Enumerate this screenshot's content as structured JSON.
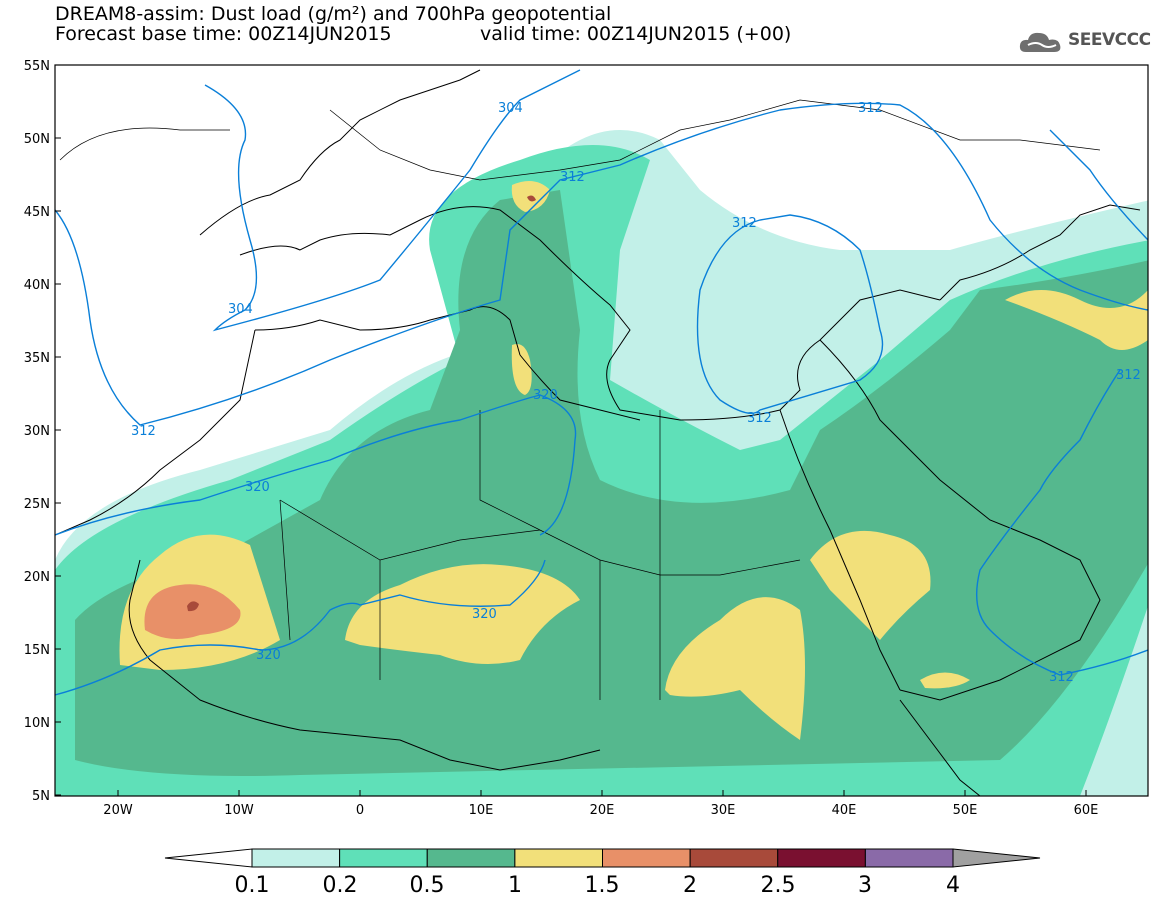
{
  "title": "DREAM8-assim: Dust load (g/m²) and 700hPa geopotential",
  "forecast_base": "Forecast base time: 00Z14JUN2015",
  "valid_time": "valid time: 00Z14JUN2015 (+00)",
  "logo_text": "SEEVCCC",
  "lat_labels": [
    "55N",
    "50N",
    "45N",
    "40N",
    "35N",
    "30N",
    "25N",
    "20N",
    "15N",
    "10N",
    "5N"
  ],
  "lon_labels": [
    "20W",
    "10W",
    "0",
    "10E",
    "20E",
    "30E",
    "40E",
    "50E",
    "60E"
  ],
  "contour_labels": [
    "304",
    "304",
    "312",
    "312",
    "312",
    "312",
    "312",
    "312",
    "312",
    "320",
    "320",
    "320",
    "320"
  ],
  "colorbar": {
    "ticks": [
      "0.1",
      "0.2",
      "0.5",
      "1",
      "1.5",
      "2",
      "2.5",
      "3",
      "4"
    ],
    "colors": [
      "#c2f0e8",
      "#5fe0b8",
      "#55b88e",
      "#f2e07a",
      "#e89068",
      "#a84a3a",
      "#7a1030",
      "#8a6aa8"
    ],
    "over_color": "#a0a0a0"
  },
  "colors": {
    "contour": "#0a7fd8",
    "coast": "#000000"
  }
}
